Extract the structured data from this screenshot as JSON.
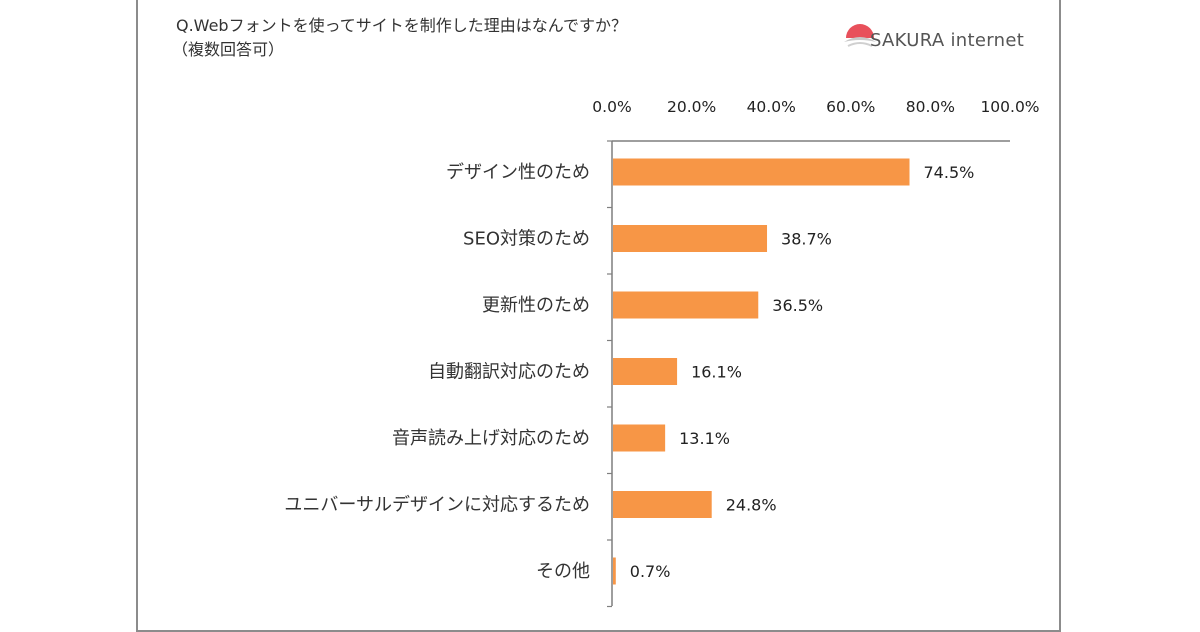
{
  "question": "Q.Webフォントを使ってサイトを制作した理由はなんですか？",
  "question_sub": "（複数回答可）",
  "logo": {
    "text": "SAKURA internet",
    "icon": "sakura-logo-icon",
    "accent": "#e8505b"
  },
  "colors": {
    "bar": "#f79646",
    "axis": "#7f7f7f",
    "frame": "#8c8c8c"
  },
  "chart_data": {
    "type": "bar",
    "orientation": "horizontal",
    "title": "",
    "xlabel": "",
    "ylabel": "",
    "xlim": [
      0,
      100
    ],
    "ticks": [
      0,
      20,
      40,
      60,
      80,
      100
    ],
    "tick_labels": [
      "0.0%",
      "20.0%",
      "40.0%",
      "60.0%",
      "80.0%",
      "100.0%"
    ],
    "axis_position": "top",
    "grid": false,
    "legend": "none",
    "categories": [
      "デザイン性のため",
      "SEO対策のため",
      "更新性のため",
      "自動翻訳対応のため",
      "音声読み上げ対応のため",
      "ユニバーサルデザインに対応するため",
      "その他"
    ],
    "values": [
      74.5,
      38.7,
      36.5,
      16.1,
      13.1,
      24.8,
      0.7
    ],
    "data_labels": [
      "74.5%",
      "38.7%",
      "36.5%",
      "16.1%",
      "13.1%",
      "24.8%",
      "0.7%"
    ]
  }
}
